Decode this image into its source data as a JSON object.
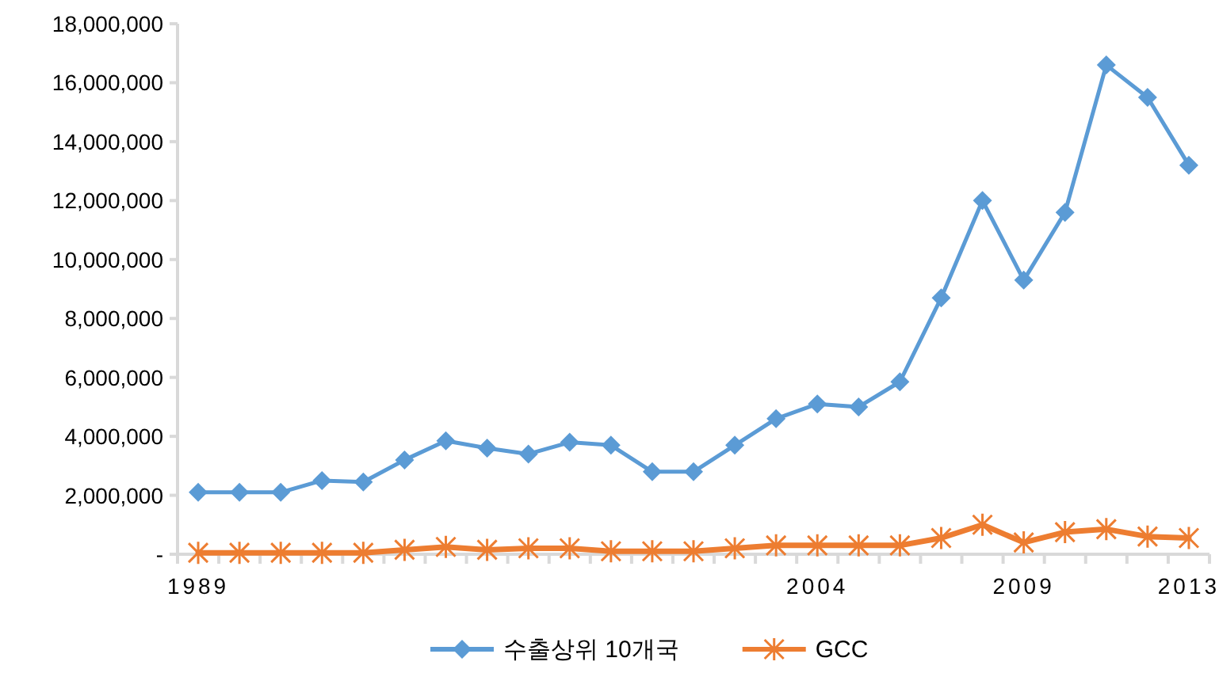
{
  "chart_data": {
    "type": "line",
    "categories": [
      "1989",
      null,
      null,
      null,
      null,
      null,
      null,
      null,
      null,
      null,
      null,
      null,
      null,
      null,
      null,
      "2004",
      null,
      null,
      null,
      null,
      "2009",
      null,
      null,
      null,
      "2013"
    ],
    "series": [
      {
        "name": "수출상위 10개국",
        "color": "#5b9bd5",
        "marker": "diamond",
        "values": [
          2100000,
          2100000,
          2100000,
          2500000,
          2450000,
          3200000,
          3850000,
          3600000,
          3400000,
          3800000,
          3700000,
          2800000,
          2800000,
          3700000,
          4600000,
          5100000,
          5000000,
          5850000,
          8700000,
          12000000,
          9300000,
          11600000,
          16600000,
          15500000,
          13200000
        ]
      },
      {
        "name": "GCC",
        "color": "#ed7d31",
        "marker": "cross",
        "values": [
          50000,
          50000,
          50000,
          50000,
          50000,
          150000,
          250000,
          150000,
          200000,
          200000,
          100000,
          100000,
          100000,
          200000,
          300000,
          300000,
          300000,
          300000,
          550000,
          1000000,
          400000,
          750000,
          850000,
          600000,
          550000
        ]
      }
    ],
    "ylim": [
      0,
      18000000
    ],
    "yticks": [
      {
        "value": 0,
        "label": "-"
      },
      {
        "value": 2000000,
        "label": "2,000,000"
      },
      {
        "value": 4000000,
        "label": "4,000,000"
      },
      {
        "value": 6000000,
        "label": "6,000,000"
      },
      {
        "value": 8000000,
        "label": "8,000,000"
      },
      {
        "value": 10000000,
        "label": "10,000,000"
      },
      {
        "value": 12000000,
        "label": "12,000,000"
      },
      {
        "value": 14000000,
        "label": "14,000,000"
      },
      {
        "value": 16000000,
        "label": "16,000,000"
      },
      {
        "value": 18000000,
        "label": "18,000,000"
      }
    ],
    "grid": false,
    "legend": "bottom"
  }
}
